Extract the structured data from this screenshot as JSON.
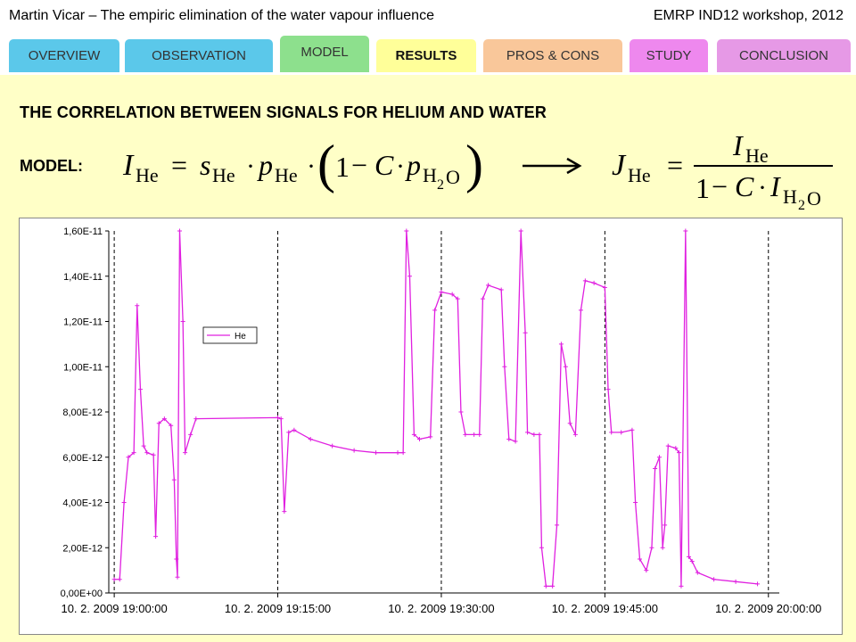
{
  "header": {
    "left_text": "Martin Vicar – The empiric elimination of the water vapour influence",
    "right_text": "EMRP IND12 workshop, 2012"
  },
  "tabs": [
    {
      "label": "OVERVIEW",
      "color": "#5bc8ea"
    },
    {
      "label": "OBSERVATION",
      "color": "#5bc8ea"
    },
    {
      "label": "MODEL",
      "color": "#8de08d"
    },
    {
      "label": "RESULTS",
      "color": "#ffff99",
      "active": true
    },
    {
      "label": "PROS & CONS",
      "color": "#f9c79a"
    },
    {
      "label": "STUDY",
      "color": "#ee88ee"
    },
    {
      "label": "CONCLUSION",
      "color": "#e699e6"
    }
  ],
  "slide": {
    "title": "THE CORRELATION BETWEEN SIGNALS FOR HELIUM AND WATER",
    "model_label": "MODEL:",
    "background": "#ffffc7"
  },
  "chart_data": {
    "type": "line",
    "series": [
      {
        "name": "He",
        "color": "#e020e0",
        "marker": "plus",
        "points": [
          [
            0,
            6e-13
          ],
          [
            0.5,
            6e-13
          ],
          [
            0.9,
            4e-12
          ],
          [
            1.3,
            6e-12
          ],
          [
            1.8,
            6.2e-12
          ],
          [
            2.1,
            1.27e-11
          ],
          [
            2.4,
            9e-12
          ],
          [
            2.7,
            6.5e-12
          ],
          [
            3.0,
            6.2e-12
          ],
          [
            3.6,
            6.1e-12
          ],
          [
            3.8,
            2.5e-12
          ],
          [
            4.1,
            7.5e-12
          ],
          [
            4.6,
            7.7e-12
          ],
          [
            5.2,
            7.4e-12
          ],
          [
            5.5,
            5e-12
          ],
          [
            5.7,
            1.5e-12
          ],
          [
            5.8,
            7e-13
          ],
          [
            6.0,
            1.6e-11
          ],
          [
            6.3,
            1.2e-11
          ],
          [
            6.5,
            6.2e-12
          ],
          [
            7.0,
            7e-12
          ],
          [
            7.5,
            7.7e-12
          ],
          [
            15.0,
            7.75e-12
          ],
          [
            15.3,
            7.7e-12
          ],
          [
            15.6,
            3.6e-12
          ],
          [
            16.0,
            7.1e-12
          ],
          [
            16.5,
            7.2e-12
          ],
          [
            18.0,
            6.8e-12
          ],
          [
            20.0,
            6.5e-12
          ],
          [
            22.0,
            6.3e-12
          ],
          [
            24.0,
            6.2e-12
          ],
          [
            26.0,
            6.2e-12
          ],
          [
            26.5,
            6.2e-12
          ],
          [
            26.8,
            1.6e-11
          ],
          [
            27.1,
            1.4e-11
          ],
          [
            27.5,
            7e-12
          ],
          [
            28.0,
            6.8e-12
          ],
          [
            29.0,
            6.9e-12
          ],
          [
            29.4,
            1.25e-11
          ],
          [
            30.0,
            1.33e-11
          ],
          [
            31.0,
            1.32e-11
          ],
          [
            31.5,
            1.3e-11
          ],
          [
            31.8,
            8e-12
          ],
          [
            32.2,
            7e-12
          ],
          [
            33.0,
            7e-12
          ],
          [
            33.5,
            7e-12
          ],
          [
            33.8,
            1.3e-11
          ],
          [
            34.3,
            1.36e-11
          ],
          [
            35.5,
            1.34e-11
          ],
          [
            35.8,
            1e-11
          ],
          [
            36.2,
            6.8e-12
          ],
          [
            36.8,
            6.7e-12
          ],
          [
            37.3,
            1.6e-11
          ],
          [
            37.7,
            1.15e-11
          ],
          [
            37.9,
            7.1e-12
          ],
          [
            38.5,
            7e-12
          ],
          [
            39.0,
            7e-12
          ],
          [
            39.2,
            2e-12
          ],
          [
            39.6,
            3e-13
          ],
          [
            40.2,
            3e-13
          ],
          [
            40.6,
            3e-12
          ],
          [
            41.0,
            1.1e-11
          ],
          [
            41.4,
            1e-11
          ],
          [
            41.8,
            7.5e-12
          ],
          [
            42.3,
            7e-12
          ],
          [
            42.8,
            1.25e-11
          ],
          [
            43.2,
            1.38e-11
          ],
          [
            44.0,
            1.37e-11
          ],
          [
            45.0,
            1.35e-11
          ],
          [
            45.3,
            9e-12
          ],
          [
            45.6,
            7.1e-12
          ],
          [
            46.5,
            7.1e-12
          ],
          [
            47.5,
            7.2e-12
          ],
          [
            47.8,
            4e-12
          ],
          [
            48.2,
            1.5e-12
          ],
          [
            48.8,
            1e-12
          ],
          [
            49.3,
            2e-12
          ],
          [
            49.6,
            5.5e-12
          ],
          [
            50.0,
            6e-12
          ],
          [
            50.3,
            2e-12
          ],
          [
            50.5,
            3e-12
          ],
          [
            50.8,
            6.5e-12
          ],
          [
            51.5,
            6.4e-12
          ],
          [
            51.8,
            6.2e-12
          ],
          [
            52.0,
            3e-13
          ],
          [
            52.4,
            1.6e-11
          ],
          [
            52.7,
            1.6e-12
          ],
          [
            53.0,
            1.4e-12
          ],
          [
            53.5,
            9e-13
          ],
          [
            55.0,
            6e-13
          ],
          [
            57.0,
            5e-13
          ],
          [
            59.0,
            4e-13
          ]
        ]
      }
    ],
    "y_ticks": [
      "0,00E+00",
      "2,00E-12",
      "4,00E-12",
      "6,00E-12",
      "8,00E-12",
      "1,00E-11",
      "1,20E-11",
      "1,40E-11",
      "1,60E-11"
    ],
    "x_ticks": [
      "10. 2. 2009 19:00:00",
      "10. 2. 2009 19:15:00",
      "10. 2. 2009 19:30:00",
      "10. 2. 2009 19:45:00",
      "10. 2. 2009 20:00:00"
    ],
    "x_tick_minutes": [
      0,
      15,
      30,
      45,
      60
    ],
    "ylim": [
      0,
      1.6e-11
    ],
    "xlim": [
      -0.5,
      61
    ],
    "grid": "vertical",
    "legend": "upper-left"
  }
}
